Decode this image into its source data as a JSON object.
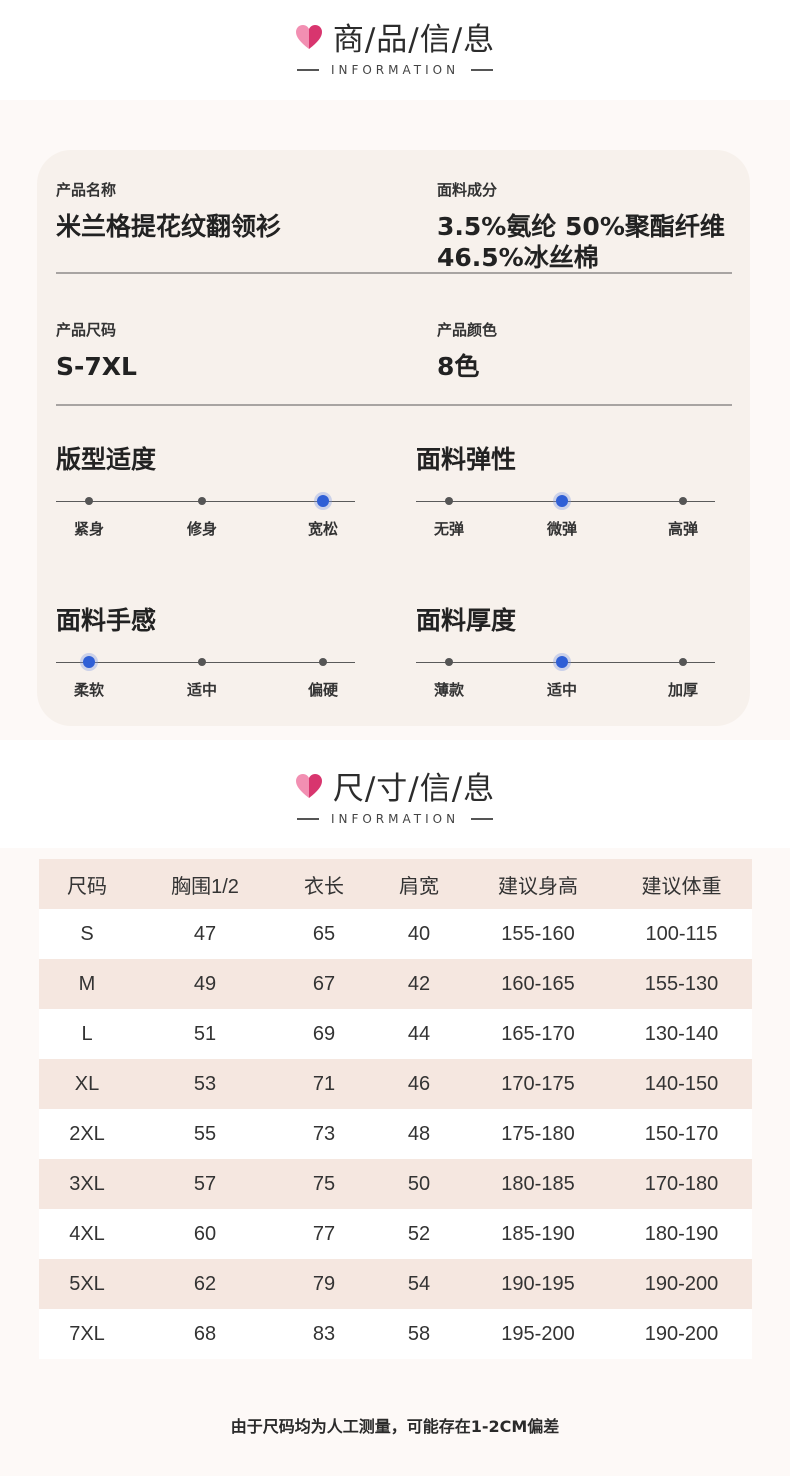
{
  "product_header": {
    "title": "商/品/信/息",
    "subtitle": "INFORMATION",
    "icon": "heart-icon"
  },
  "product_info": {
    "name_label": "产品名称",
    "name_value": "米兰格提花纹翻领衫",
    "fabric_label": "面料成分",
    "fabric_value_line1": "3.5%氨纶 50%聚酯纤维",
    "fabric_value_line2": "46.5%冰丝棉",
    "size_label": "产品尺码",
    "size_value": "S-7XL",
    "color_label": "产品颜色",
    "color_value": "8色"
  },
  "scales": {
    "fit": {
      "title": "版型适度",
      "options": [
        "紧身",
        "修身",
        "宽松"
      ],
      "selected": 2
    },
    "elasticity": {
      "title": "面料弹性",
      "options": [
        "无弹",
        "微弹",
        "高弹"
      ],
      "selected": 1
    },
    "feel": {
      "title": "面料手感",
      "options": [
        "柔软",
        "适中",
        "偏硬"
      ],
      "selected": 0
    },
    "thickness": {
      "title": "面料厚度",
      "options": [
        "薄款",
        "适中",
        "加厚"
      ],
      "selected": 1
    }
  },
  "size_header": {
    "title": "尺/寸/信/息",
    "subtitle": "INFORMATION",
    "icon": "heart-icon"
  },
  "size_table": {
    "headers": [
      "尺码",
      "胸围1/2",
      "衣长",
      "肩宽",
      "建议身高",
      "建议体重"
    ],
    "rows": [
      [
        "S",
        "47",
        "65",
        "40",
        "155-160",
        "100-115"
      ],
      [
        "M",
        "49",
        "67",
        "42",
        "160-165",
        "155-130"
      ],
      [
        "L",
        "51",
        "69",
        "44",
        "165-170",
        "130-140"
      ],
      [
        "XL",
        "53",
        "71",
        "46",
        "170-175",
        "140-150"
      ],
      [
        "2XL",
        "55",
        "73",
        "48",
        "175-180",
        "150-170"
      ],
      [
        "3XL",
        "57",
        "75",
        "50",
        "180-185",
        "170-180"
      ],
      [
        "4XL",
        "60",
        "77",
        "52",
        "185-190",
        "180-190"
      ],
      [
        "5XL",
        "62",
        "79",
        "54",
        "190-195",
        "190-200"
      ],
      [
        "7XL",
        "68",
        "83",
        "58",
        "195-200",
        "190-200"
      ]
    ]
  },
  "footnote": "由于尺码均为人工测量，可能存在1-2CM偏差",
  "colors": {
    "accent_heart_light": "#f28fb2",
    "accent_heart_dark": "#d8356e",
    "selected_dot": "#2f5fd6",
    "row_shade": "#f5e7e0",
    "card_bg": "#f7f1ec"
  }
}
